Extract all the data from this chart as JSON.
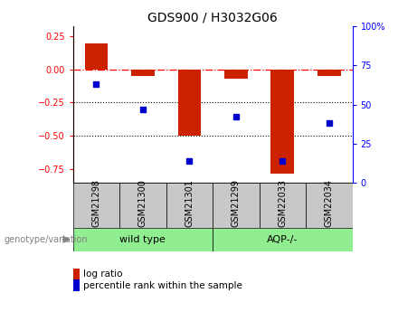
{
  "title": "GDS900 / H3032G06",
  "samples": [
    "GSM21298",
    "GSM21300",
    "GSM21301",
    "GSM21299",
    "GSM22033",
    "GSM22034"
  ],
  "log_ratios": [
    0.19,
    -0.05,
    -0.5,
    -0.07,
    -0.78,
    -0.05
  ],
  "percentile_ranks": [
    63,
    47,
    14,
    42,
    14,
    38
  ],
  "wild_type_indices": [
    0,
    1,
    2
  ],
  "aqp_indices": [
    3,
    4,
    5
  ],
  "wild_type_color": "#90EE90",
  "aqp_color": "#90EE90",
  "bar_color": "#cc2200",
  "dot_color": "#0000cc",
  "gray_color": "#c8c8c8",
  "ylim_left": [
    -0.85,
    0.32
  ],
  "ylim_right": [
    0,
    100
  ],
  "yticks_left": [
    -0.75,
    -0.5,
    -0.25,
    0,
    0.25
  ],
  "yticks_right": [
    0,
    25,
    50,
    75,
    100
  ],
  "dotted_lines": [
    -0.25,
    -0.5
  ],
  "legend_log_ratio": "log ratio",
  "legend_percentile": "percentile rank within the sample",
  "genotype_label": "genotype/variation",
  "background_color": "#ffffff",
  "title_fontsize": 10,
  "tick_fontsize": 7,
  "label_fontsize": 7,
  "geno_fontsize": 8
}
